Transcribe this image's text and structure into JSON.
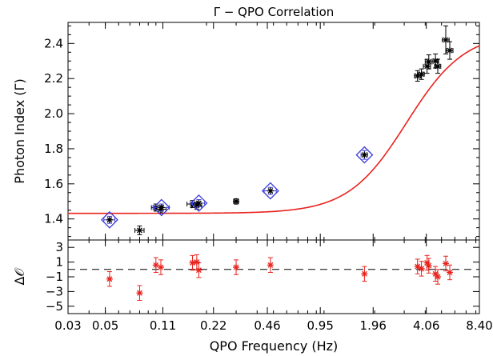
{
  "chart_data": {
    "type": "scatter",
    "title": "Γ − QPO Correlation",
    "xlabel": "QPO Frequency (Hz)",
    "xscale": "log",
    "xlim": [
      0.03,
      8.4
    ],
    "x_tick_labels": [
      "0.03",
      "0.05",
      "0.11",
      "0.22",
      "0.46",
      "0.95",
      "1.96",
      "4.06",
      "8.40"
    ],
    "x_tick_values": [
      0.03,
      0.05,
      0.11,
      0.22,
      0.46,
      0.95,
      1.96,
      4.06,
      8.4
    ],
    "top_panel": {
      "ylabel": "Photon Index (Γ)",
      "ylim": [
        1.28,
        2.52
      ],
      "y_ticks": [
        1.4,
        1.6,
        1.8,
        2.0,
        2.2,
        2.4
      ],
      "y_tick_labels": [
        "1.4",
        "1.6",
        "1.8",
        "2.0",
        "2.2",
        "2.4"
      ],
      "fit_curve": {
        "color": "#e8231d",
        "form": "logistic",
        "a": 1.432,
        "b": 2.466,
        "x0": 3.1,
        "k": 2.5
      },
      "points": [
        {
          "x": 0.08,
          "y": 1.335,
          "xerr": 0.005,
          "yerr": 0.025
        },
        {
          "x": 0.1,
          "y": 1.465,
          "xerr": 0.006,
          "yerr": 0.02
        },
        {
          "x": 0.107,
          "y": 1.455,
          "xerr": 0.008,
          "yerr": 0.02
        },
        {
          "x": 0.165,
          "y": 1.485,
          "xerr": 0.012,
          "yerr": 0.02
        },
        {
          "x": 0.175,
          "y": 1.475,
          "xerr": 0.012,
          "yerr": 0.02
        },
        {
          "x": 0.3,
          "y": 1.5,
          "xerr": 0.01,
          "yerr": 0.015
        },
        {
          "x": 3.6,
          "y": 2.215,
          "xerr": 0.15,
          "yerr": 0.03
        },
        {
          "x": 3.8,
          "y": 2.225,
          "xerr": 0.15,
          "yerr": 0.03
        },
        {
          "x": 4.1,
          "y": 2.27,
          "xerr": 0.2,
          "yerr": 0.04
        },
        {
          "x": 4.2,
          "y": 2.295,
          "xerr": 0.2,
          "yerr": 0.04
        },
        {
          "x": 4.6,
          "y": 2.3,
          "xerr": 0.2,
          "yerr": 0.04
        },
        {
          "x": 4.75,
          "y": 2.27,
          "xerr": 0.2,
          "yerr": 0.04
        },
        {
          "x": 5.3,
          "y": 2.42,
          "xerr": 0.25,
          "yerr": 0.08
        },
        {
          "x": 5.6,
          "y": 2.36,
          "xerr": 0.25,
          "yerr": 0.05
        }
      ],
      "diamond_points": [
        {
          "x": 0.053,
          "y": 1.395,
          "xerr": 0.004,
          "yerr": 0.02
        },
        {
          "x": 0.108,
          "y": 1.465,
          "xerr": 0.012,
          "yerr": 0.02
        },
        {
          "x": 0.18,
          "y": 1.49,
          "xerr": 0.015,
          "yerr": 0.02
        },
        {
          "x": 0.48,
          "y": 1.56,
          "xerr": 0.04,
          "yerr": 0.02
        },
        {
          "x": 1.74,
          "y": 1.765,
          "xerr": 0.08,
          "yerr": 0.025
        }
      ],
      "diamond_color": "#3a3ad8"
    },
    "residual_panel": {
      "ylabel": "Δ𝒪",
      "ylim": [
        -6,
        4
      ],
      "y_ticks": [
        3,
        1,
        -1,
        -3,
        -5
      ],
      "y_tick_labels": [
        "3",
        "1",
        "−1",
        "−3",
        "−5"
      ],
      "zero_line": 0,
      "color": "#e8231d",
      "points": [
        {
          "x": 0.053,
          "y": -1.3,
          "yerr": 1.0
        },
        {
          "x": 0.08,
          "y": -3.2,
          "yerr": 1.0
        },
        {
          "x": 0.1,
          "y": 0.6,
          "yerr": 1.0
        },
        {
          "x": 0.107,
          "y": 0.3,
          "yerr": 1.0
        },
        {
          "x": 0.165,
          "y": 0.9,
          "yerr": 1.0
        },
        {
          "x": 0.175,
          "y": 1.0,
          "yerr": 1.0
        },
        {
          "x": 0.18,
          "y": -0.1,
          "yerr": 1.0
        },
        {
          "x": 0.3,
          "y": 0.3,
          "yerr": 1.0
        },
        {
          "x": 0.48,
          "y": 0.6,
          "yerr": 1.0
        },
        {
          "x": 1.74,
          "y": -0.6,
          "yerr": 1.0
        },
        {
          "x": 3.6,
          "y": 0.4,
          "yerr": 1.0
        },
        {
          "x": 3.8,
          "y": 0.1,
          "yerr": 1.0
        },
        {
          "x": 4.1,
          "y": 0.9,
          "yerr": 1.0
        },
        {
          "x": 4.2,
          "y": 0.5,
          "yerr": 1.0
        },
        {
          "x": 4.6,
          "y": -0.6,
          "yerr": 1.0
        },
        {
          "x": 4.75,
          "y": -1.0,
          "yerr": 1.0
        },
        {
          "x": 5.3,
          "y": 0.8,
          "yerr": 1.0
        },
        {
          "x": 5.6,
          "y": -0.4,
          "yerr": 1.0
        }
      ]
    }
  }
}
